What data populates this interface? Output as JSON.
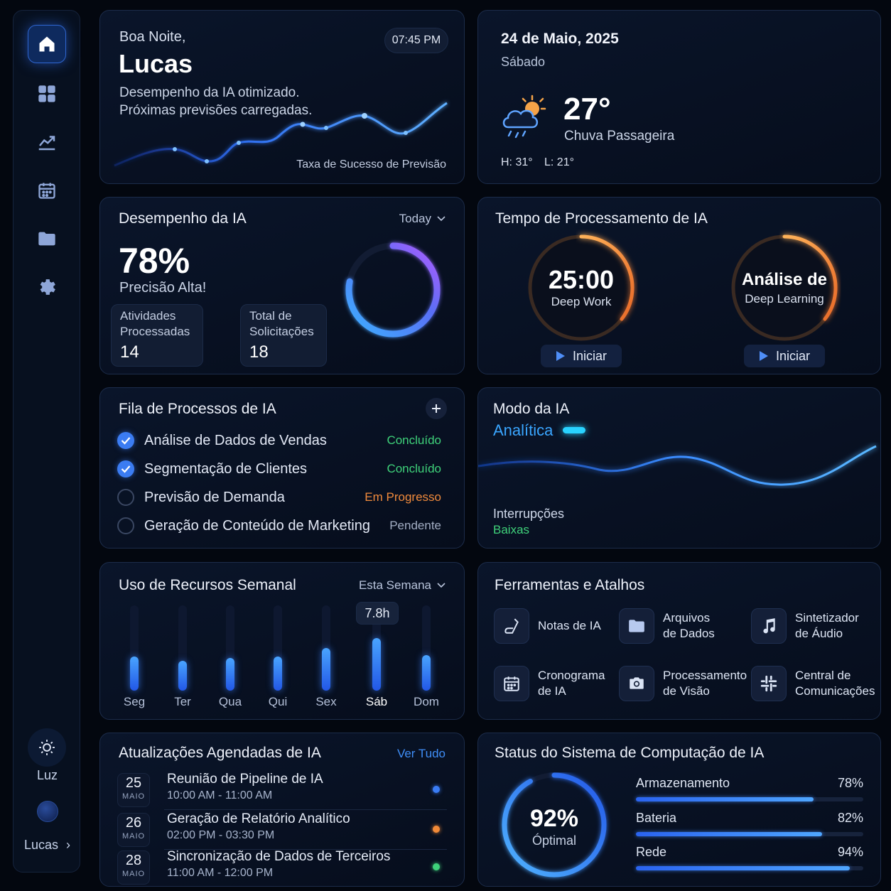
{
  "sidebar": {
    "icons": [
      "home-icon",
      "grid-icon",
      "chart-icon",
      "calendar-icon",
      "folder-icon",
      "gear-icon"
    ],
    "theme_label": "Luz",
    "user_label": "Lucas"
  },
  "greeting": {
    "salutation": "Boa Noite,",
    "name": "Lucas",
    "time": "07:45 PM",
    "line1": "Desempenho da IA otimizado.",
    "line2": "Próximas previsões carregadas.",
    "chart_caption": "Taxa de Sucesso de Previsão"
  },
  "weather": {
    "date": "24 de Maio, 2025",
    "weekday": "Sábado",
    "temp": "27°",
    "condition": "Chuva Passageira",
    "high": "H: 31°",
    "low": "L: 21°"
  },
  "performance": {
    "title": "Desempenho da IA",
    "filter": "Today",
    "percent": "78%",
    "subtitle": "Precisão Alta!",
    "stat1_label1": "Atividades",
    "stat1_label2": "Processadas",
    "stat1_value": "14",
    "stat2_label1": "Total de",
    "stat2_label2": "Solicitações",
    "stat2_value": "18",
    "ring_value": 0.78
  },
  "processing": {
    "title": "Tempo de Processamento de IA",
    "timer1_main": "25:00",
    "timer1_sub": "Deep Work",
    "timer2_main": "Análise de",
    "timer2_sub": "Deep Learning",
    "start_label": "Iniciar"
  },
  "queue": {
    "title": "Fila de Processos de IA",
    "items": [
      {
        "label": "Análise de Dados de Vendas",
        "status": "Concluído"
      },
      {
        "label": "Segmentação de Clientes",
        "status": "Concluído"
      },
      {
        "label": "Previsão de Demanda",
        "status": "Em Progresso"
      },
      {
        "label": "Geração de Conteúdo de Marketing",
        "status": "Pendente"
      }
    ],
    "colors": {
      "done": "#3fd27a",
      "progress": "#f08a3c",
      "pending": "#a3aec4"
    }
  },
  "mode": {
    "title": "Modo da IA",
    "value": "Analítica",
    "interrupt_label": "Interrupções",
    "interrupt_value": "Baixas"
  },
  "usage": {
    "title": "Uso de Recursos Semanal",
    "filter": "Esta Semana",
    "tooltip": "7.8h"
  },
  "chart_data": {
    "type": "bar",
    "categories": [
      "Seg",
      "Ter",
      "Qua",
      "Qui",
      "Sex",
      "Sáb",
      "Dom"
    ],
    "values": [
      0.4,
      0.35,
      0.38,
      0.4,
      0.5,
      0.62,
      0.42
    ],
    "highlight": "Sáb",
    "highlight_label": "7.8h"
  },
  "tools": {
    "title": "Ferramentas e Atalhos",
    "items": [
      {
        "icon": "notes-icon",
        "line1": "Notas de IA",
        "line2": ""
      },
      {
        "icon": "folder-icon",
        "line1": "Arquivos",
        "line2": "de Dados"
      },
      {
        "icon": "music-icon",
        "line1": "Sintetizador",
        "line2": "de Áudio"
      },
      {
        "icon": "calendar-icon",
        "line1": "Cronograma",
        "line2": "de IA"
      },
      {
        "icon": "camera-icon",
        "line1": "Processamento",
        "line2": "de Visão"
      },
      {
        "icon": "slack-icon",
        "line1": "Central de",
        "line2": "Comunicações"
      }
    ]
  },
  "updates": {
    "title": "Atualizações Agendadas de IA",
    "view_all": "Ver Tudo",
    "items": [
      {
        "day": "25",
        "month": "MAIO",
        "title": "Reunião de Pipeline de IA",
        "time": "10:00 AM - 11:00 AM",
        "color": "#3a7cf5"
      },
      {
        "day": "26",
        "month": "MAIO",
        "title": "Geração de Relatório Analítico",
        "time": "02:00 PM - 03:30 PM",
        "color": "#f28a38"
      },
      {
        "day": "28",
        "month": "MAIO",
        "title": "Sincronização de Dados de Terceiros",
        "time": "11:00 AM - 12:00 PM",
        "color": "#3ed27a"
      }
    ]
  },
  "system": {
    "title": "Status do Sistema de Computação de IA",
    "ring_text": "92%",
    "ring_sub": "Óptimal",
    "ring_value": 0.92,
    "resources": [
      {
        "label": "Armazenamento",
        "value": "78%",
        "fraction": 0.78
      },
      {
        "label": "Bateria",
        "value": "82%",
        "fraction": 0.82
      },
      {
        "label": "Rede",
        "value": "94%",
        "fraction": 0.94
      }
    ]
  }
}
